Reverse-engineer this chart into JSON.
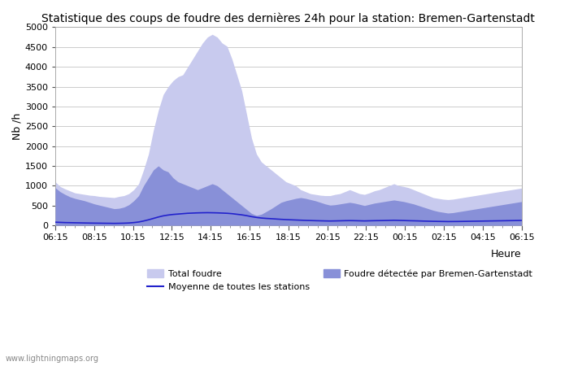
{
  "title": "Statistique des coups de foudre des dernières 24h pour la station: Bremen-Gartenstadt",
  "xlabel": "Heure",
  "ylabel": "Nb /h",
  "ylim": [
    0,
    5000
  ],
  "yticks": [
    0,
    500,
    1000,
    1500,
    2000,
    2500,
    3000,
    3500,
    4000,
    4500,
    5000
  ],
  "xtick_labels": [
    "06:15",
    "08:15",
    "10:15",
    "12:15",
    "14:15",
    "16:15",
    "18:15",
    "20:15",
    "22:15",
    "00:15",
    "02:15",
    "04:15",
    "06:15"
  ],
  "watermark": "www.lightningmaps.org",
  "legend_total": "Total foudre",
  "legend_detected": "Foudre détectée par Bremen-Gartenstadt",
  "legend_avg": "Moyenne de toutes les stations",
  "color_total": "#c8caee",
  "color_detected": "#8890d8",
  "color_avg": "#2222cc",
  "background": "#ffffff",
  "total_foudre": [
    1100,
    980,
    920,
    870,
    820,
    800,
    780,
    760,
    750,
    730,
    720,
    710,
    700,
    730,
    750,
    800,
    900,
    1050,
    1400,
    1800,
    2400,
    2900,
    3300,
    3500,
    3650,
    3750,
    3800,
    4000,
    4200,
    4400,
    4600,
    4750,
    4820,
    4750,
    4600,
    4520,
    4200,
    3800,
    3400,
    2800,
    2200,
    1800,
    1600,
    1500,
    1400,
    1300,
    1200,
    1100,
    1050,
    1000,
    900,
    850,
    800,
    780,
    760,
    750,
    750,
    780,
    800,
    850,
    900,
    850,
    800,
    780,
    820,
    870,
    900,
    950,
    1000,
    1050,
    1000,
    980,
    950,
    900,
    850,
    800,
    750,
    700,
    680,
    660,
    650,
    660,
    680,
    700,
    720,
    740,
    760,
    780,
    800,
    820,
    840,
    860,
    880,
    900,
    920,
    940
  ],
  "detected": [
    950,
    850,
    780,
    720,
    680,
    650,
    620,
    580,
    540,
    510,
    480,
    450,
    420,
    430,
    460,
    520,
    620,
    750,
    1000,
    1200,
    1400,
    1500,
    1400,
    1350,
    1200,
    1100,
    1050,
    1000,
    950,
    900,
    950,
    1000,
    1050,
    1000,
    900,
    800,
    700,
    600,
    500,
    400,
    300,
    250,
    280,
    350,
    420,
    500,
    580,
    620,
    650,
    680,
    700,
    680,
    650,
    620,
    580,
    540,
    510,
    520,
    540,
    560,
    580,
    560,
    530,
    500,
    530,
    560,
    580,
    600,
    620,
    640,
    620,
    600,
    570,
    540,
    500,
    460,
    420,
    380,
    350,
    330,
    310,
    320,
    340,
    360,
    380,
    400,
    420,
    440,
    460,
    480,
    500,
    520,
    540,
    560,
    580,
    600
  ],
  "avg_line": [
    80,
    75,
    70,
    68,
    65,
    63,
    60,
    58,
    56,
    55,
    53,
    52,
    50,
    52,
    55,
    60,
    70,
    85,
    110,
    140,
    175,
    210,
    240,
    260,
    275,
    285,
    295,
    305,
    310,
    315,
    318,
    320,
    318,
    315,
    310,
    305,
    295,
    280,
    265,
    245,
    220,
    200,
    185,
    175,
    168,
    160,
    152,
    145,
    140,
    135,
    130,
    125,
    122,
    118,
    115,
    112,
    110,
    112,
    115,
    118,
    120,
    118,
    115,
    112,
    115,
    118,
    120,
    122,
    125,
    128,
    125,
    122,
    118,
    115,
    112,
    108,
    105,
    102,
    100,
    98,
    96,
    97,
    98,
    100,
    102,
    104,
    106,
    108,
    110,
    112,
    114,
    116,
    118,
    120,
    122,
    124
  ],
  "n_points": 96
}
